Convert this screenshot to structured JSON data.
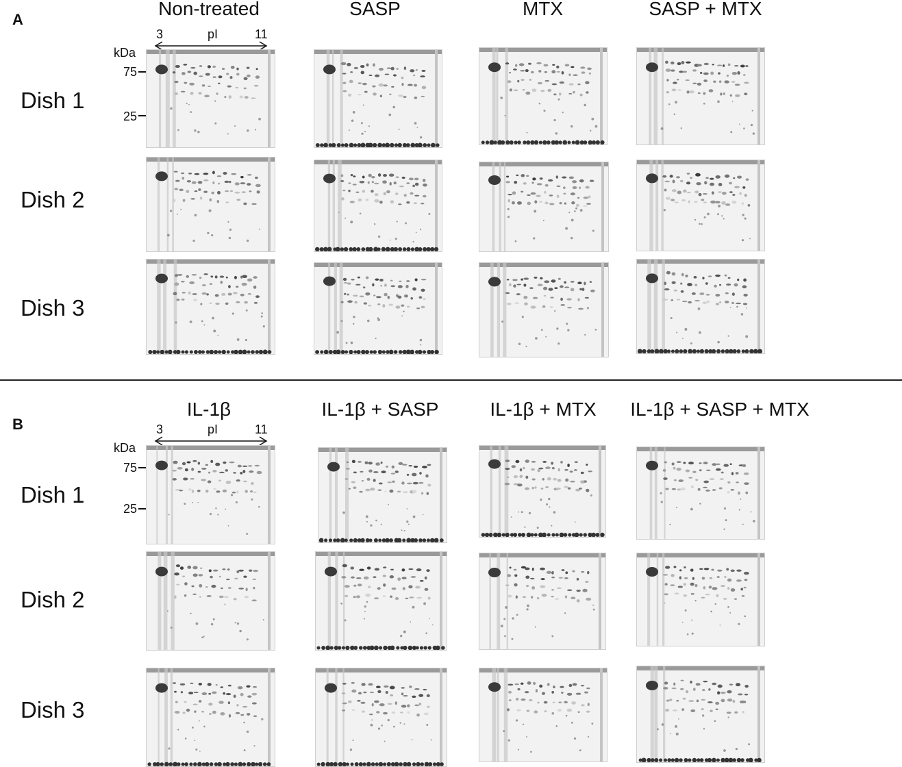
{
  "panels": [
    {
      "letter": "A",
      "columns": [
        "Non-treated",
        "SASP",
        "MTX",
        "SASP + MTX"
      ],
      "rows": [
        "Dish 1",
        "Dish 2",
        "Dish 3"
      ],
      "axis": {
        "ph_low": "3",
        "ph_label": "pI",
        "ph_high": "11",
        "mw_unit": "kDa",
        "mw_high": "75",
        "mw_low": "25"
      }
    },
    {
      "letter": "B",
      "columns": [
        "IL-1β",
        "IL-1β + SASP",
        "IL-1β + MTX",
        "IL-1β + SASP + MTX"
      ],
      "rows": [
        "Dish 1",
        "Dish 2",
        "Dish 3"
      ],
      "axis": {
        "ph_low": "3",
        "ph_label": "pI",
        "ph_high": "11",
        "mw_unit": "kDa",
        "mw_high": "75",
        "mw_low": "25"
      }
    }
  ]
}
